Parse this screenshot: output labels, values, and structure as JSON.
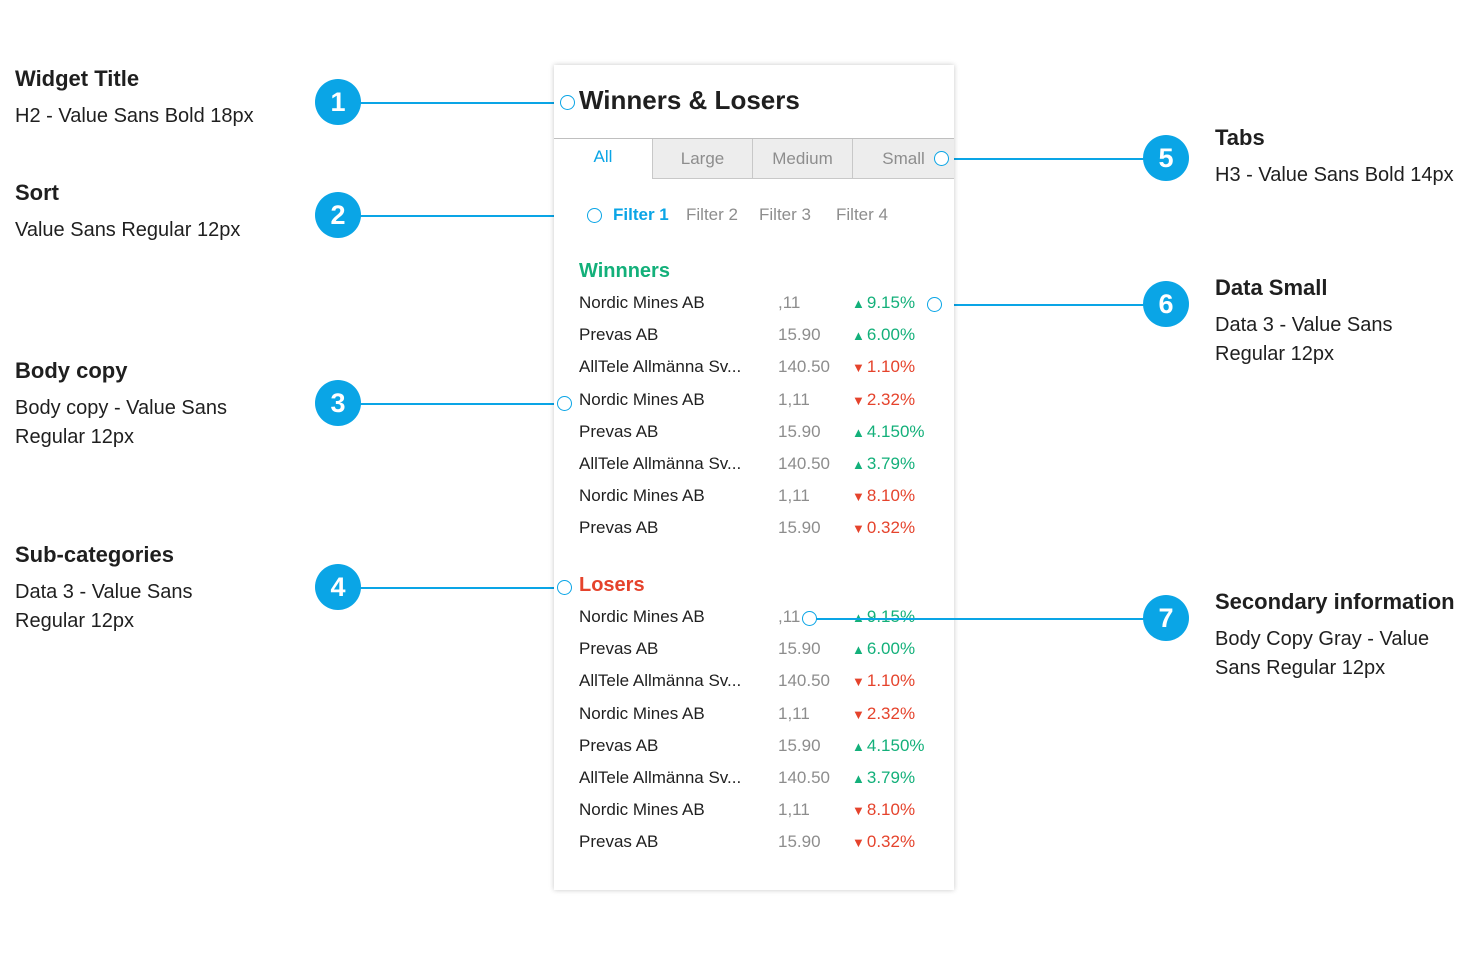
{
  "colors": {
    "accent": "#0aa5e6",
    "winners": "#13b07a",
    "losers": "#e5432c",
    "gray": "#8d8d8d"
  },
  "annotations": [
    {
      "badge": "1",
      "title": "Widget Title",
      "desc": "H2 - Value Sans Bold 18px"
    },
    {
      "badge": "2",
      "title": "Sort",
      "desc": "Value Sans Regular 12px"
    },
    {
      "badge": "3",
      "title": "Body copy",
      "desc": "Body copy - Value Sans Regular 12px"
    },
    {
      "badge": "4",
      "title": "Sub-categories",
      "desc": "Data 3 - Value Sans Regular 12px"
    },
    {
      "badge": "5",
      "title": "Tabs",
      "desc": "H3 - Value Sans Bold 14px"
    },
    {
      "badge": "6",
      "title": "Data Small",
      "desc": "Data 3 - Value Sans Regular 12px"
    },
    {
      "badge": "7",
      "title": "Secondary information",
      "desc": "Body Copy Gray - Value Sans Regular 12px"
    }
  ],
  "widget": {
    "title": "Winners & Losers",
    "tabs": [
      "All",
      "Large",
      "Medium",
      "Small"
    ],
    "active_tab": "All",
    "filters": [
      "Filter 1",
      "Filter 2",
      "Filter 3",
      "Filter 4"
    ],
    "active_filter": "Filter 1",
    "winners": {
      "heading": "Winnners",
      "rows": [
        {
          "name": "Nordic Mines AB",
          "value": ",11",
          "change": "9.15%",
          "direction": "up"
        },
        {
          "name": "Prevas AB",
          "value": "15.90",
          "change": "6.00%",
          "direction": "up"
        },
        {
          "name": "AllTele Allmänna Sv...",
          "value": "140.50",
          "change": "1.10%",
          "direction": "down"
        },
        {
          "name": "Nordic Mines AB",
          "value": "1,11",
          "change": "2.32%",
          "direction": "down"
        },
        {
          "name": "Prevas AB",
          "value": "15.90",
          "change": "4.150%",
          "direction": "up"
        },
        {
          "name": "AllTele Allmänna Sv...",
          "value": "140.50",
          "change": "3.79%",
          "direction": "up"
        },
        {
          "name": "Nordic Mines AB",
          "value": "1,11",
          "change": "8.10%",
          "direction": "down"
        },
        {
          "name": "Prevas AB",
          "value": "15.90",
          "change": "0.32%",
          "direction": "down"
        }
      ]
    },
    "losers": {
      "heading": "Losers",
      "rows": [
        {
          "name": "Nordic Mines AB",
          "value": ",11",
          "change": "9.15%",
          "direction": "up"
        },
        {
          "name": "Prevas AB",
          "value": "15.90",
          "change": "6.00%",
          "direction": "up"
        },
        {
          "name": "AllTele Allmänna Sv...",
          "value": "140.50",
          "change": "1.10%",
          "direction": "down"
        },
        {
          "name": "Nordic Mines AB",
          "value": "1,11",
          "change": "2.32%",
          "direction": "down"
        },
        {
          "name": "Prevas AB",
          "value": "15.90",
          "change": "4.150%",
          "direction": "up"
        },
        {
          "name": "AllTele Allmänna Sv...",
          "value": "140.50",
          "change": "3.79%",
          "direction": "up"
        },
        {
          "name": "Nordic Mines AB",
          "value": "1,11",
          "change": "8.10%",
          "direction": "down"
        },
        {
          "name": "Prevas AB",
          "value": "15.90",
          "change": "0.32%",
          "direction": "down"
        }
      ]
    }
  }
}
